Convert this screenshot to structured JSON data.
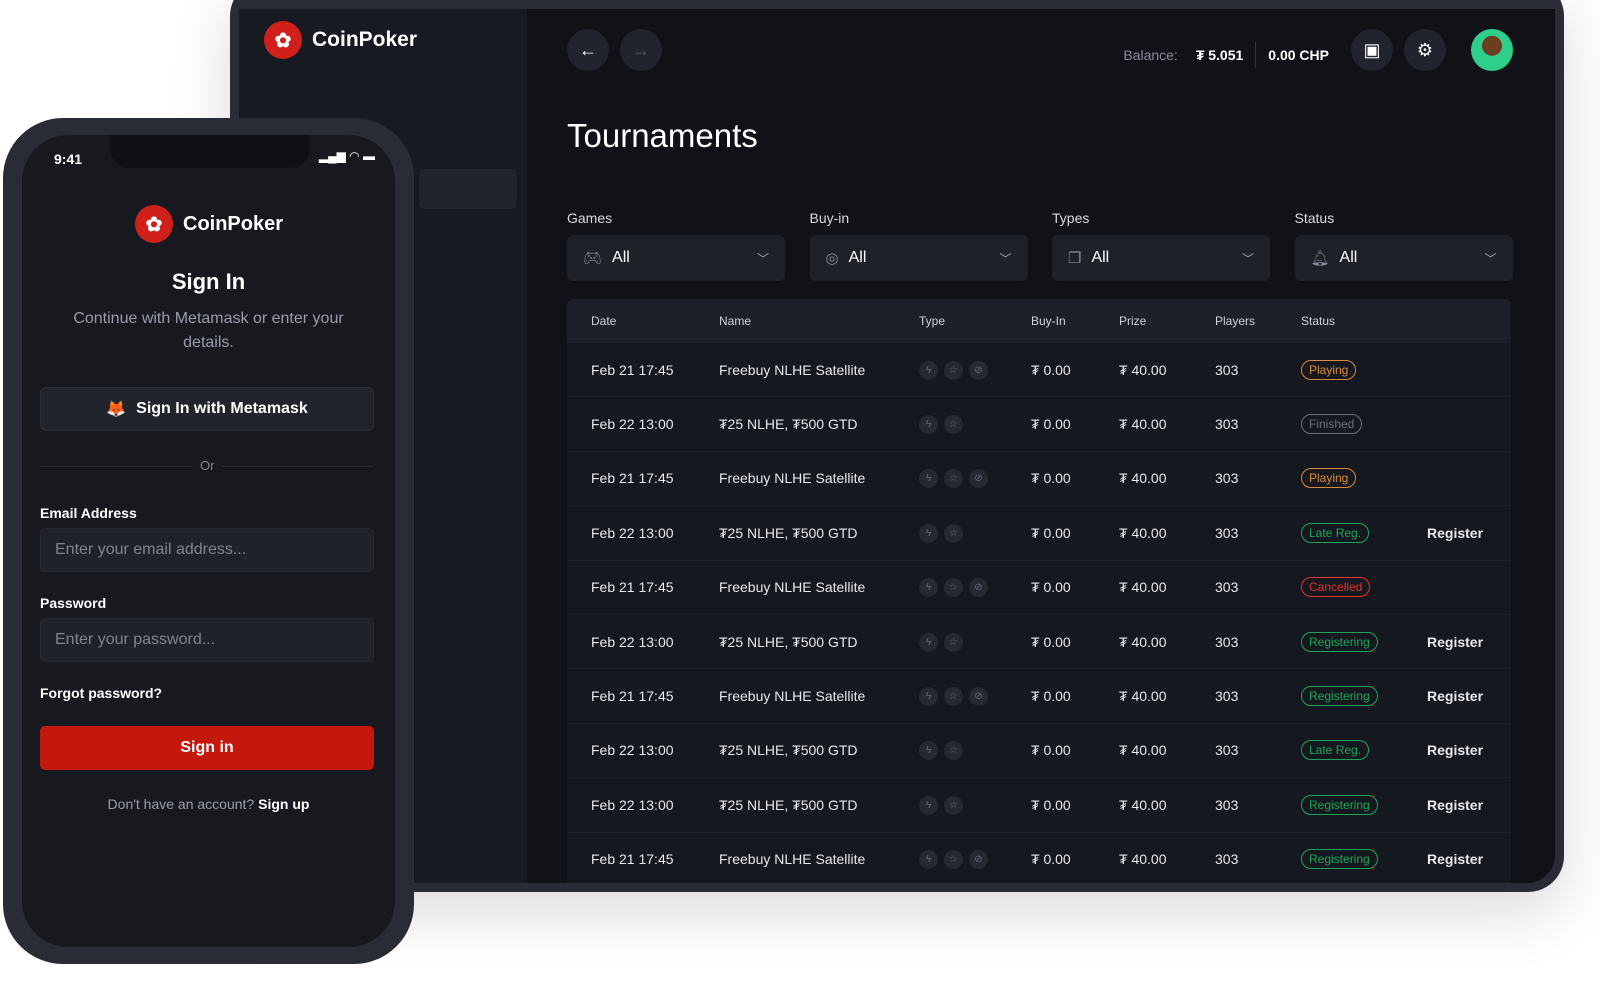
{
  "brand": "CoinPoker",
  "desktop": {
    "balance_label": "Balance:",
    "balance_token": "₮ 5.051",
    "balance_chp": "0.00 CHP",
    "title": "Tournaments",
    "filters": [
      {
        "label": "Games",
        "value": "All",
        "icon": "gamepad-icon"
      },
      {
        "label": "Buy-in",
        "value": "All",
        "icon": "chip-icon"
      },
      {
        "label": "Types",
        "value": "All",
        "icon": "cards-icon"
      },
      {
        "label": "Status",
        "value": "All",
        "icon": "bell-icon"
      }
    ],
    "columns": [
      "Date",
      "Name",
      "Type",
      "Buy-In",
      "Prize",
      "Players",
      "Status"
    ],
    "status_colors": {
      "Playing": "#d98a3d",
      "Finished": "#6b6e7a",
      "Late Reg.": "#1fa55a",
      "Cancelled": "#e0332b",
      "Registering": "#1fa55a"
    },
    "rows": [
      {
        "date": "Feb 21 17:45",
        "name": "Freebuy NLHE Satellite",
        "types": [
          "bolt",
          "star",
          "satellite"
        ],
        "buyin": "₮ 0.00",
        "prize": "₮ 40.00",
        "players": "303",
        "status": "Playing",
        "action": ""
      },
      {
        "date": "Feb 22 13:00",
        "name": "₮25 NLHE, ₮500 GTD",
        "types": [
          "bolt",
          "star"
        ],
        "buyin": "₮ 0.00",
        "prize": "₮ 40.00",
        "players": "303",
        "status": "Finished",
        "action": ""
      },
      {
        "date": "Feb 21 17:45",
        "name": "Freebuy NLHE Satellite",
        "types": [
          "bolt",
          "star",
          "satellite"
        ],
        "buyin": "₮ 0.00",
        "prize": "₮ 40.00",
        "players": "303",
        "status": "Playing",
        "action": ""
      },
      {
        "date": "Feb 22 13:00",
        "name": "₮25 NLHE, ₮500 GTD",
        "types": [
          "bolt",
          "star"
        ],
        "buyin": "₮ 0.00",
        "prize": "₮ 40.00",
        "players": "303",
        "status": "Late Reg.",
        "action": "Register"
      },
      {
        "date": "Feb 21 17:45",
        "name": "Freebuy NLHE Satellite",
        "types": [
          "bolt",
          "star",
          "satellite"
        ],
        "buyin": "₮ 0.00",
        "prize": "₮ 40.00",
        "players": "303",
        "status": "Cancelled",
        "action": ""
      },
      {
        "date": "Feb 22 13:00",
        "name": "₮25 NLHE, ₮500 GTD",
        "types": [
          "bolt",
          "star"
        ],
        "buyin": "₮ 0.00",
        "prize": "₮ 40.00",
        "players": "303",
        "status": "Registering",
        "action": "Register"
      },
      {
        "date": "Feb 21 17:45",
        "name": "Freebuy NLHE Satellite",
        "types": [
          "bolt",
          "star",
          "satellite"
        ],
        "buyin": "₮ 0.00",
        "prize": "₮ 40.00",
        "players": "303",
        "status": "Registering",
        "action": "Register"
      },
      {
        "date": "Feb 22 13:00",
        "name": "₮25 NLHE, ₮500 GTD",
        "types": [
          "bolt",
          "star"
        ],
        "buyin": "₮ 0.00",
        "prize": "₮ 40.00",
        "players": "303",
        "status": "Late Reg.",
        "action": "Register"
      },
      {
        "date": "Feb 22 13:00",
        "name": "₮25 NLHE, ₮500 GTD",
        "types": [
          "bolt",
          "star"
        ],
        "buyin": "₮ 0.00",
        "prize": "₮ 40.00",
        "players": "303",
        "status": "Registering",
        "action": "Register"
      },
      {
        "date": "Feb 21 17:45",
        "name": "Freebuy NLHE Satellite",
        "types": [
          "bolt",
          "star",
          "satellite"
        ],
        "buyin": "₮ 0.00",
        "prize": "₮ 40.00",
        "players": "303",
        "status": "Registering",
        "action": "Register"
      }
    ]
  },
  "phone": {
    "time": "9:41",
    "title": "Sign In",
    "subtitle": "Continue with Metamask or enter your details.",
    "metamask_button": "Sign In with Metamask",
    "or": "Or",
    "email_label": "Email Address",
    "email_placeholder": "Enter your email address...",
    "password_label": "Password",
    "password_placeholder": "Enter your password...",
    "forgot": "Forgot password?",
    "signin_button": "Sign in",
    "signin_color": "#c4180f",
    "no_account": "Don't have an account?",
    "signup": "Sign up"
  }
}
